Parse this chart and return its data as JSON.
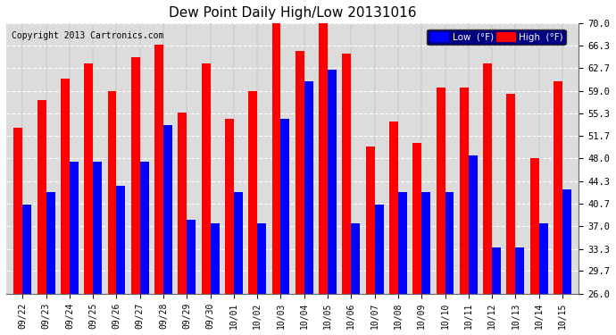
{
  "title": "Dew Point Daily High/Low 20131016",
  "copyright": "Copyright 2013 Cartronics.com",
  "labels": [
    "09/22",
    "09/23",
    "09/24",
    "09/25",
    "09/26",
    "09/27",
    "09/28",
    "09/29",
    "09/30",
    "10/01",
    "10/02",
    "10/03",
    "10/04",
    "10/05",
    "10/06",
    "10/07",
    "10/08",
    "10/09",
    "10/10",
    "10/11",
    "10/12",
    "10/13",
    "10/14",
    "10/15"
  ],
  "high": [
    53.0,
    57.5,
    61.0,
    63.5,
    59.0,
    64.5,
    66.5,
    55.5,
    63.5,
    54.5,
    59.0,
    70.0,
    65.5,
    70.5,
    65.0,
    50.0,
    54.0,
    50.5,
    59.5,
    59.5,
    63.5,
    58.5,
    48.0,
    60.5
  ],
  "low": [
    40.5,
    42.5,
    47.5,
    47.5,
    43.5,
    47.5,
    53.5,
    38.0,
    37.5,
    42.5,
    37.5,
    54.5,
    60.5,
    62.5,
    37.5,
    40.5,
    42.5,
    42.5,
    42.5,
    48.5,
    33.5,
    33.5,
    37.5,
    43.0
  ],
  "high_color": "#FF0000",
  "low_color": "#0000FF",
  "bg_color": "#FFFFFF",
  "plot_bg_color": "#DCDCDC",
  "grid_color": "#FFFFFF",
  "ymin": 26.0,
  "ymax": 70.0,
  "yticks": [
    26.0,
    29.7,
    33.3,
    37.0,
    40.7,
    44.3,
    48.0,
    51.7,
    55.3,
    59.0,
    62.7,
    66.3,
    70.0
  ],
  "legend_low_label": "Low  (°F)",
  "legend_high_label": "High  (°F)"
}
